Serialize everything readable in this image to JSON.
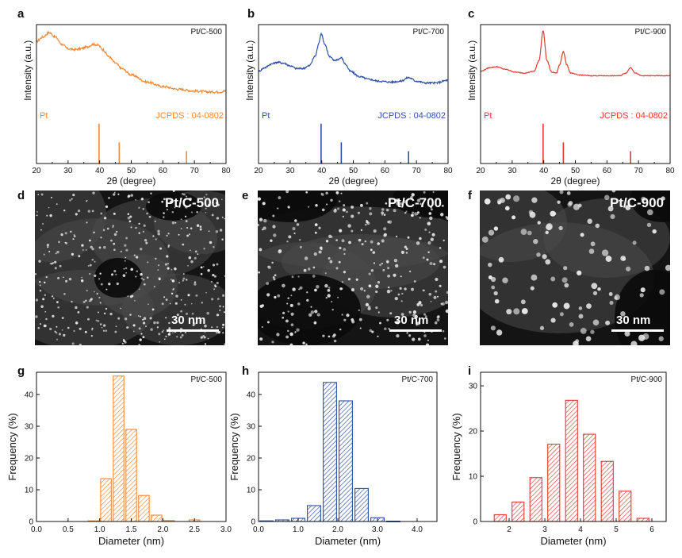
{
  "panel_letters": [
    "a",
    "b",
    "c",
    "d",
    "e",
    "f",
    "g",
    "h",
    "i"
  ],
  "chart_data": [
    {
      "id": "a",
      "type": "line",
      "title": "Pt/C-500",
      "color": "#EE8A3A",
      "xlabel": "2θ (degree)",
      "ylabel": "Intensity (a.u.)",
      "xlim": [
        20,
        80
      ],
      "xticks": [
        20,
        30,
        40,
        50,
        60,
        70,
        80
      ],
      "y_ticks_shown": false,
      "curve": {
        "x": [
          20,
          22,
          24,
          26,
          28,
          30,
          32,
          34,
          36,
          38,
          39.5,
          41,
          43,
          45,
          47,
          50,
          55,
          60,
          65,
          70,
          75,
          78,
          80
        ],
        "y": [
          0.83,
          0.88,
          0.93,
          0.88,
          0.8,
          0.75,
          0.74,
          0.75,
          0.77,
          0.8,
          0.79,
          0.74,
          0.66,
          0.59,
          0.53,
          0.46,
          0.38,
          0.33,
          0.3,
          0.28,
          0.27,
          0.27,
          0.28
        ]
      },
      "noise": 0.012,
      "reference": {
        "label": "Pt",
        "card": "JCPDS : 04-0802",
        "x": [
          39.8,
          46.2,
          67.5
        ],
        "rel_intensity": [
          1.0,
          0.53,
          0.31
        ]
      }
    },
    {
      "id": "b",
      "type": "line",
      "title": "Pt/C-700",
      "color": "#2E4FA8",
      "xlabel": "2θ (degree)",
      "ylabel": "Intensity (a.u.)",
      "xlim": [
        20,
        80
      ],
      "xticks": [
        20,
        30,
        40,
        50,
        60,
        70,
        80
      ],
      "y_ticks_shown": false,
      "curve": {
        "x": [
          20,
          22,
          24,
          26,
          28,
          30,
          32,
          34,
          36,
          38,
          39,
          39.8,
          41,
          42.5,
          44,
          45,
          46.2,
          47.5,
          49,
          52,
          55,
          58,
          62,
          65,
          67.5,
          70,
          73,
          76,
          80
        ],
        "y": [
          0.5,
          0.54,
          0.58,
          0.6,
          0.59,
          0.56,
          0.53,
          0.53,
          0.56,
          0.67,
          0.8,
          0.92,
          0.8,
          0.66,
          0.62,
          0.63,
          0.65,
          0.58,
          0.5,
          0.44,
          0.41,
          0.39,
          0.38,
          0.39,
          0.43,
          0.39,
          0.37,
          0.37,
          0.4
        ]
      },
      "noise": 0.01,
      "reference": {
        "label": "Pt",
        "card": "JCPDS : 04-0802",
        "x": [
          39.8,
          46.2,
          67.5
        ],
        "rel_intensity": [
          1.0,
          0.53,
          0.31
        ]
      }
    },
    {
      "id": "c",
      "type": "line",
      "title": "Pt/C-900",
      "color": "#E23A32",
      "xlabel": "2θ (degree)",
      "ylabel": "Intensity (a.u.)",
      "xlim": [
        20,
        80
      ],
      "xticks": [
        20,
        30,
        40,
        50,
        60,
        70,
        80
      ],
      "y_ticks_shown": false,
      "curve": {
        "x": [
          20,
          23,
          25,
          28,
          31,
          34,
          37,
          38.5,
          39.8,
          41,
          42.5,
          44,
          45,
          46.2,
          47.3,
          48.5,
          51,
          55,
          60,
          64,
          66,
          67.5,
          69,
          71,
          75,
          80
        ],
        "y": [
          0.5,
          0.54,
          0.55,
          0.52,
          0.49,
          0.48,
          0.5,
          0.62,
          0.95,
          0.62,
          0.49,
          0.48,
          0.57,
          0.72,
          0.57,
          0.48,
          0.46,
          0.45,
          0.45,
          0.45,
          0.48,
          0.54,
          0.48,
          0.45,
          0.45,
          0.45
        ]
      },
      "noise": 0.004,
      "reference": {
        "label": "Pt",
        "card": "JCPDS : 04-0802",
        "x": [
          39.8,
          46.2,
          67.5
        ],
        "rel_intensity": [
          1.0,
          0.53,
          0.31
        ]
      }
    },
    {
      "id": "g",
      "type": "bar",
      "title": "Pt/C-500",
      "color": "#EE8A3A",
      "xlabel": "Diameter (nm)",
      "ylabel": "Frequency (%)",
      "xlim": [
        0.0,
        3.0
      ],
      "ylim": [
        0,
        47
      ],
      "xticks": [
        0.0,
        0.5,
        1.0,
        1.5,
        2.0,
        2.5,
        3.0
      ],
      "xtick_labels": [
        "0.0",
        "0.5",
        "1.0",
        "1.5",
        "2.0",
        "2.5",
        "3.0"
      ],
      "yticks": [
        0,
        10,
        20,
        30,
        40
      ],
      "bin_width": 0.2,
      "bins": [
        0.9,
        1.1,
        1.3,
        1.5,
        1.7,
        1.9,
        2.1,
        2.3,
        2.5,
        2.7
      ],
      "values": [
        0.2,
        13.5,
        45.8,
        29.0,
        8.2,
        2.0,
        0.3,
        0.0,
        0.5,
        0.0
      ]
    },
    {
      "id": "h",
      "type": "bar",
      "title": "Pt/C-700",
      "color": "#2E4FA8",
      "xlabel": "Diameter (nm)",
      "ylabel": "Frequency (%)",
      "xlim": [
        0.0,
        4.5
      ],
      "ylim": [
        0,
        47
      ],
      "xticks": [
        0.0,
        1.0,
        2.0,
        3.0,
        4.0
      ],
      "xtick_labels": [
        "0.0",
        "1.0",
        "2.0",
        "3.0",
        "4.0"
      ],
      "yticks": [
        0,
        10,
        20,
        30,
        40
      ],
      "bin_width": 0.4,
      "bins": [
        0.2,
        0.6,
        1.0,
        1.4,
        1.8,
        2.2,
        2.6,
        3.0,
        3.4,
        3.8
      ],
      "values": [
        0.2,
        0.5,
        1.0,
        5.0,
        43.8,
        38.0,
        10.4,
        1.2,
        0.1,
        0.0
      ]
    },
    {
      "id": "i",
      "type": "bar",
      "title": "Pt/C-900",
      "color": "#E23A32",
      "xlabel": "Diameter (nm)",
      "ylabel": "Frequency (%)",
      "xlim": [
        1.2,
        6.4
      ],
      "ylim": [
        0,
        33
      ],
      "xticks": [
        2,
        3,
        4,
        5,
        6
      ],
      "xtick_labels": [
        "2",
        "3",
        "4",
        "5",
        "6"
      ],
      "yticks": [
        0,
        10,
        20,
        30
      ],
      "bin_width": 0.4,
      "bins": [
        1.75,
        2.25,
        2.75,
        3.25,
        3.75,
        4.25,
        4.75,
        5.25,
        5.75
      ],
      "values": [
        1.5,
        4.3,
        9.7,
        17.1,
        26.8,
        19.3,
        13.3,
        6.7,
        0.7
      ]
    }
  ],
  "tem_images": [
    {
      "id": "d",
      "label": "Pt/C-500",
      "scale_bar": "30 nm"
    },
    {
      "id": "e",
      "label": "Pt/C-700",
      "scale_bar": "30 nm"
    },
    {
      "id": "f",
      "label": "Pt/C-900",
      "scale_bar": "30 nm"
    }
  ]
}
